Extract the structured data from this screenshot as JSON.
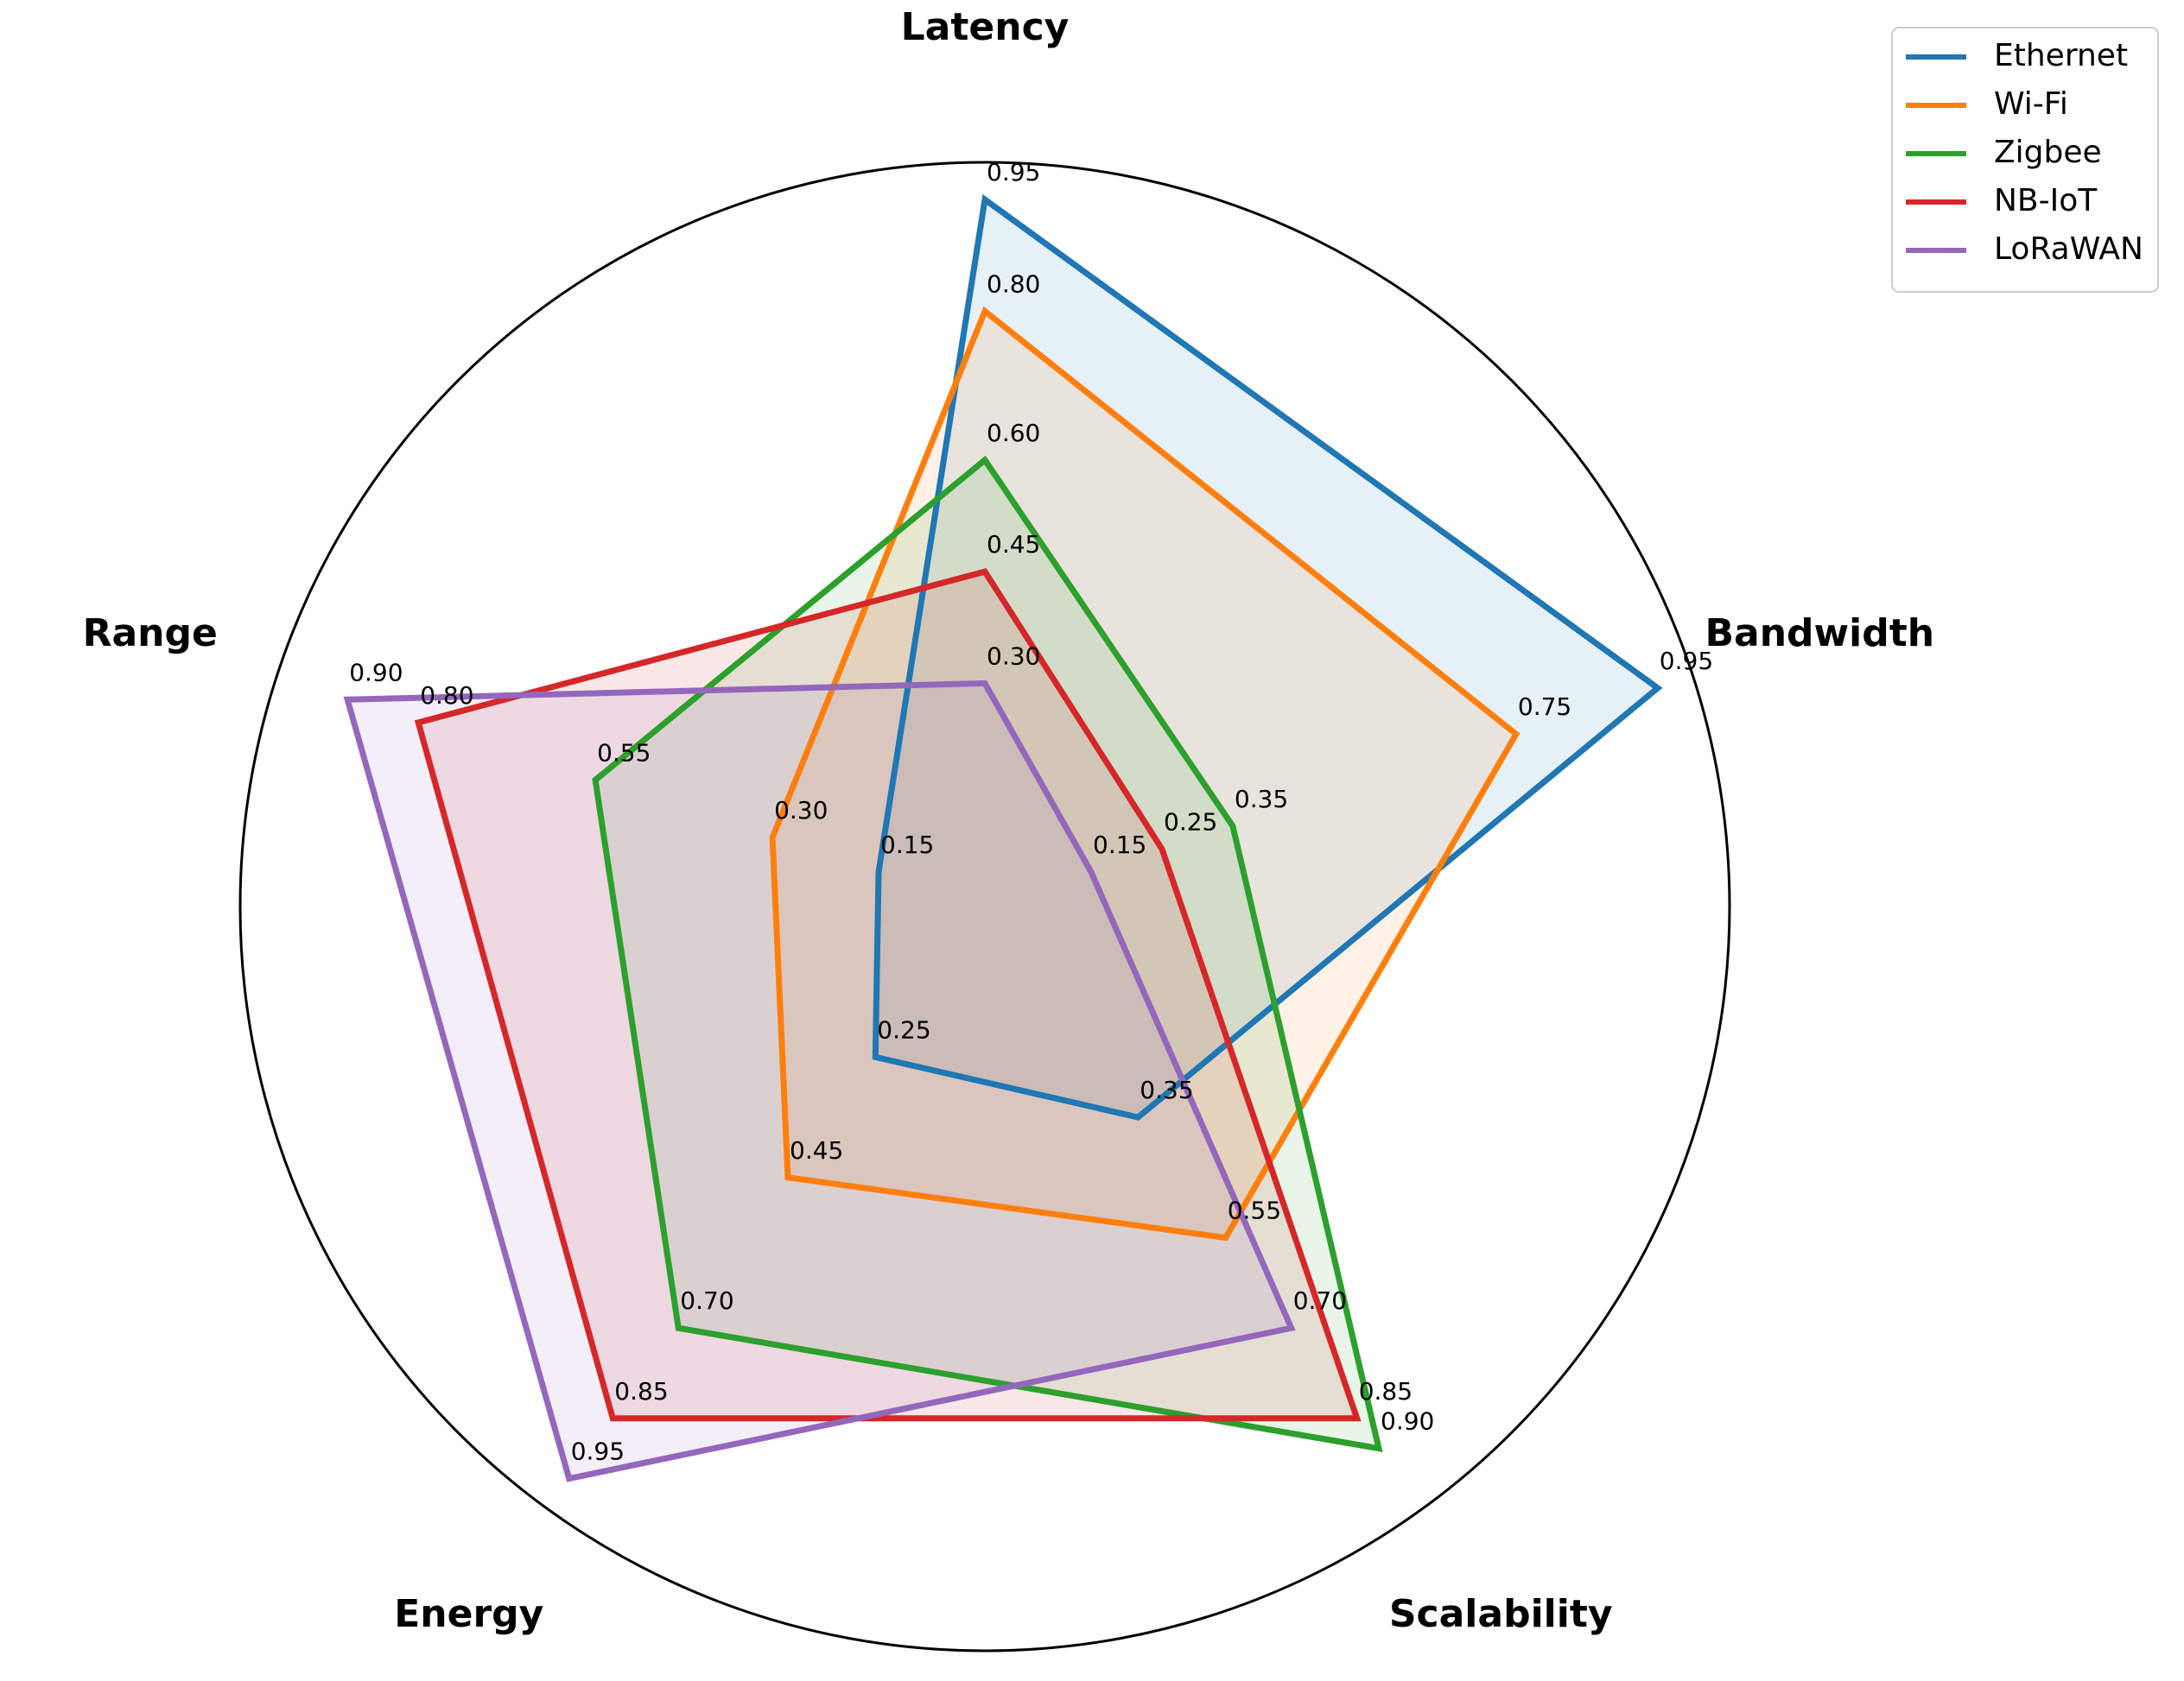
{
  "chart_data": {
    "type": "radar",
    "axes": [
      "Latency",
      "Bandwidth",
      "Scalability",
      "Energy",
      "Range"
    ],
    "rlim": [
      0,
      1
    ],
    "grid": false,
    "legend_position": "top-right",
    "series": [
      {
        "name": "Ethernet",
        "color": "#1f77b4",
        "values": [
          0.95,
          0.95,
          0.35,
          0.25,
          0.15
        ]
      },
      {
        "name": "Wi-Fi",
        "color": "#ff7f0e",
        "values": [
          0.8,
          0.75,
          0.55,
          0.45,
          0.3
        ]
      },
      {
        "name": "Zigbee",
        "color": "#2ca02c",
        "values": [
          0.6,
          0.35,
          0.9,
          0.7,
          0.55
        ]
      },
      {
        "name": "NB-IoT",
        "color": "#d62728",
        "values": [
          0.45,
          0.25,
          0.85,
          0.85,
          0.8
        ]
      },
      {
        "name": "LoRaWAN",
        "color": "#9467bd",
        "values": [
          0.3,
          0.15,
          0.7,
          0.95,
          0.9
        ]
      }
    ]
  }
}
